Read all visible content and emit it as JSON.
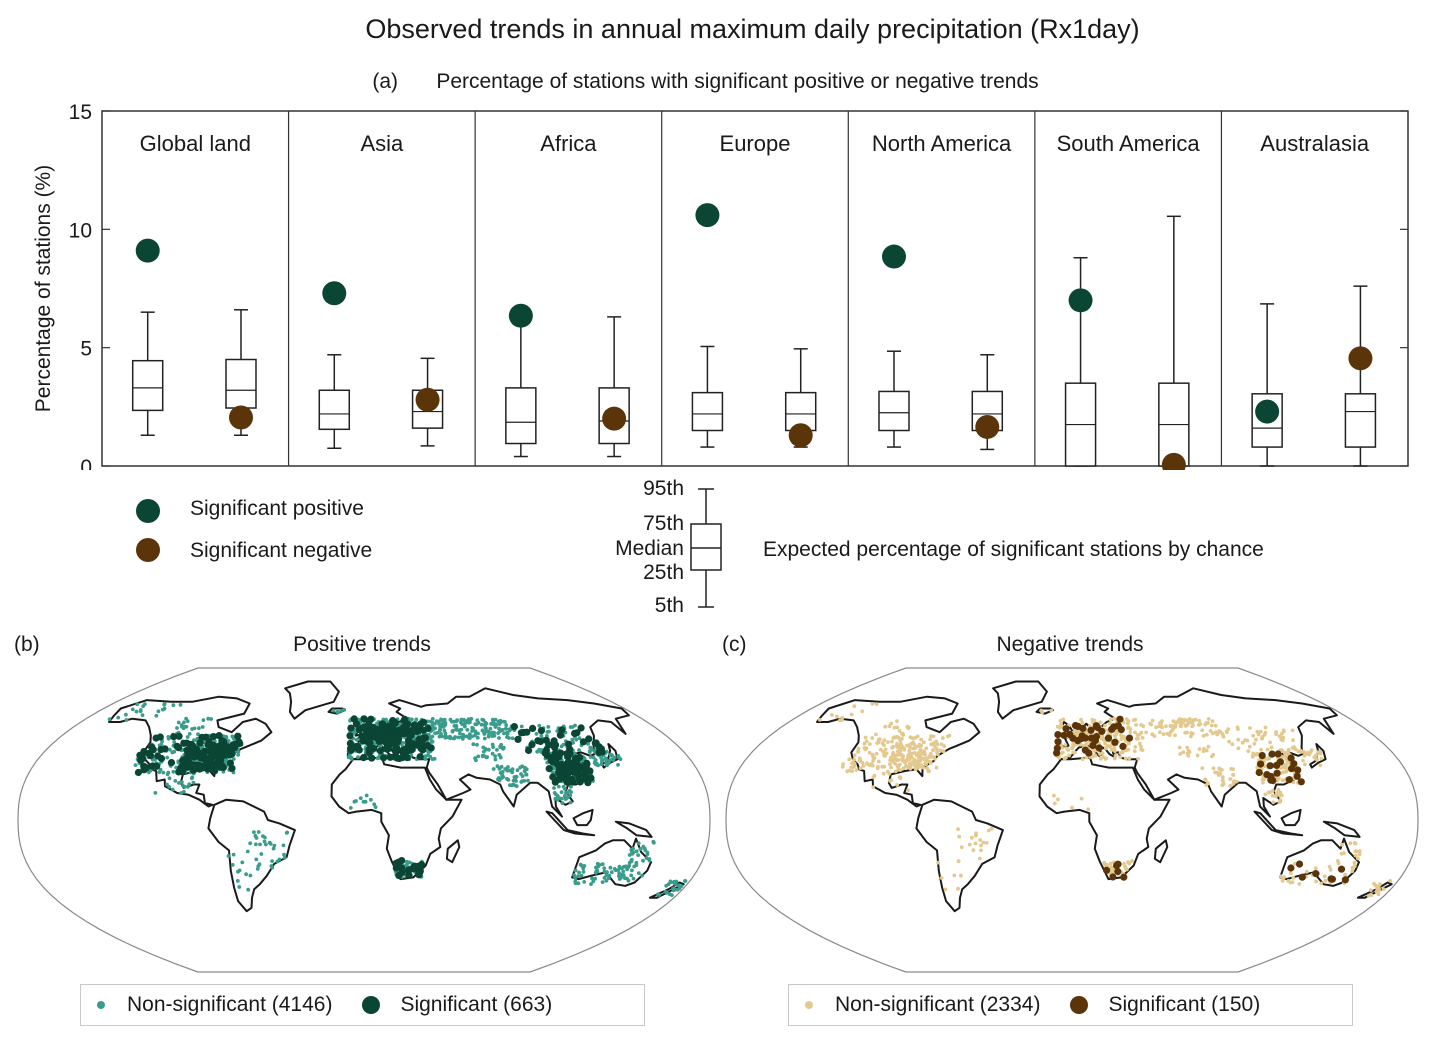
{
  "title": "Observed trends in annual maximum daily precipitation (Rx1day)",
  "chart_data": [
    {
      "type": "box",
      "panel": "(a)",
      "title": "Percentage of stations with significant positive or negative trends",
      "ylabel": "Percentage of stations (%)",
      "ylim": [
        0,
        15
      ],
      "yticks": [
        0,
        5,
        10,
        15
      ],
      "regions": [
        "Global land",
        "Asia",
        "Africa",
        "Europe",
        "North America",
        "South America",
        "Australasia"
      ],
      "boxes_positive": [
        {
          "p5": 1.3,
          "p25": 2.35,
          "median": 3.3,
          "p75": 4.45,
          "p95": 6.5
        },
        {
          "p5": 0.75,
          "p25": 1.55,
          "median": 2.2,
          "p75": 3.2,
          "p95": 4.7
        },
        {
          "p5": 0.4,
          "p25": 0.95,
          "median": 1.85,
          "p75": 3.3,
          "p95": 6.4
        },
        {
          "p5": 0.8,
          "p25": 1.5,
          "median": 2.2,
          "p75": 3.1,
          "p95": 5.05
        },
        {
          "p5": 0.8,
          "p25": 1.5,
          "median": 2.25,
          "p75": 3.15,
          "p95": 4.85
        },
        {
          "p5": 0.0,
          "p25": 0.0,
          "median": 1.75,
          "p75": 3.5,
          "p95": 8.8
        },
        {
          "p5": 0.0,
          "p25": 0.8,
          "median": 1.6,
          "p75": 3.05,
          "p95": 6.85
        }
      ],
      "boxes_negative": [
        {
          "p5": 1.3,
          "p25": 2.45,
          "median": 3.2,
          "p75": 4.5,
          "p95": 6.6
        },
        {
          "p5": 0.85,
          "p25": 1.6,
          "median": 2.3,
          "p75": 3.2,
          "p95": 4.55
        },
        {
          "p5": 0.4,
          "p25": 0.95,
          "median": 1.9,
          "p75": 3.3,
          "p95": 6.3
        },
        {
          "p5": 0.8,
          "p25": 1.5,
          "median": 2.2,
          "p75": 3.1,
          "p95": 4.95
        },
        {
          "p5": 0.7,
          "p25": 1.5,
          "median": 2.2,
          "p75": 3.15,
          "p95": 4.7
        },
        {
          "p5": 0.0,
          "p25": 0.0,
          "median": 1.75,
          "p75": 3.5,
          "p95": 10.55
        },
        {
          "p5": 0.0,
          "p25": 0.8,
          "median": 2.3,
          "p75": 3.05,
          "p95": 7.6
        }
      ],
      "series": [
        {
          "name": "Significant positive",
          "color": "#0b4534",
          "values": [
            9.1,
            7.3,
            6.35,
            10.6,
            8.85,
            7.0,
            2.3
          ]
        },
        {
          "name": "Significant negative",
          "color": "#5b3409",
          "values": [
            2.05,
            2.8,
            2.0,
            1.3,
            1.65,
            0.05,
            4.55
          ]
        }
      ],
      "legend": {
        "positive_label": "Significant positive",
        "negative_label": "Significant negative",
        "box_key": {
          "p95": "95th",
          "p75": "75th",
          "median": "Median",
          "p25": "25th",
          "p5": "5th"
        },
        "box_caption": "Expected percentage of significant stations by chance"
      }
    },
    {
      "type": "scatter",
      "panel": "(b)",
      "title": "Positive trends",
      "series": [
        {
          "name": "Non-significant (4146)",
          "color": "#3a9c8c"
        },
        {
          "name": "Significant (663)",
          "color": "#0b4534"
        }
      ]
    },
    {
      "type": "scatter",
      "panel": "(c)",
      "title": "Negative trends",
      "series": [
        {
          "name": "Non-significant (2334)",
          "color": "#e3c98e"
        },
        {
          "name": "Significant (150)",
          "color": "#5b3409"
        }
      ]
    }
  ]
}
